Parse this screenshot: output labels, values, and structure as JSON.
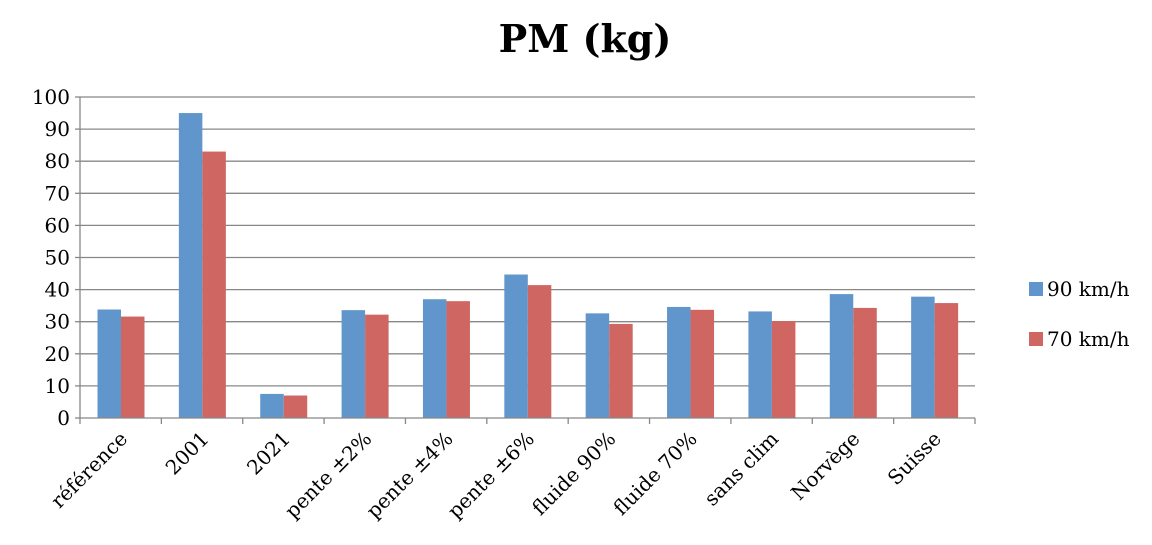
{
  "chart_data": {
    "type": "bar",
    "title": "PM (kg)",
    "xlabel": "",
    "ylabel": "",
    "ylim": [
      0,
      100
    ],
    "yticks": [
      0,
      10,
      20,
      30,
      40,
      50,
      60,
      70,
      80,
      90,
      100
    ],
    "grid": true,
    "legend_position": "right",
    "categories": [
      "référence",
      "2001",
      "2021",
      "pente ±2%",
      "pente ±4%",
      "pente ±6%",
      "fluide 90%",
      "fluide 70%",
      "sans clim",
      "Norvège",
      "Suisse"
    ],
    "series": [
      {
        "name": "90 km/h",
        "color": "#6196cc",
        "values": [
          33.8,
          95.0,
          7.5,
          33.6,
          37.0,
          44.7,
          32.6,
          34.6,
          33.2,
          38.6,
          37.8
        ]
      },
      {
        "name": "70 km/h",
        "color": "#cf6661",
        "values": [
          31.6,
          83.0,
          7.0,
          32.2,
          36.4,
          41.4,
          29.3,
          33.7,
          30.2,
          34.3,
          35.8
        ]
      }
    ]
  }
}
